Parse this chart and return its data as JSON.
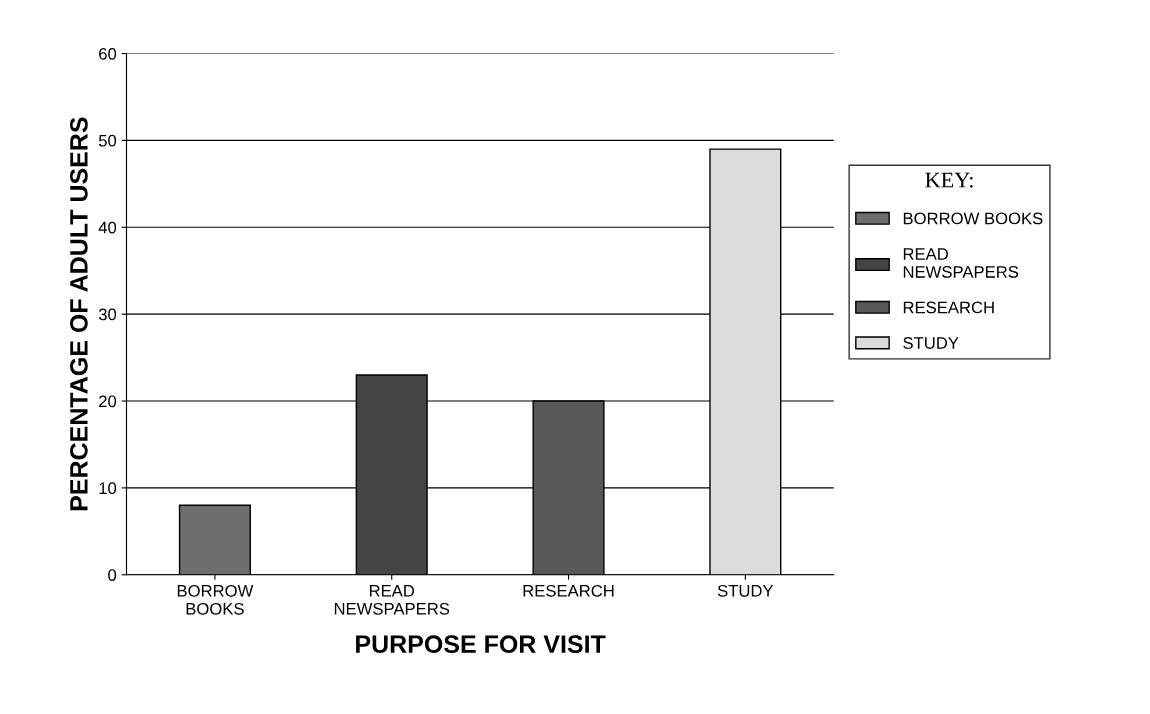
{
  "chart_data": {
    "type": "bar",
    "xlabel": "PURPOSE FOR VISIT",
    "ylabel": "PERCENTAGE OF ADULT USERS",
    "legend_title": "KEY:",
    "categories": [
      "BORROW\nBOOKS",
      "READ\nNEWSPAPERS",
      "RESEARCH",
      "STUDY"
    ],
    "series": [
      {
        "name": "BORROW BOOKS",
        "color": "#6e6e6e",
        "values": [
          8,
          null,
          null,
          null
        ]
      },
      {
        "name": "READ\nNEWSPAPERS",
        "color": "#444444",
        "values": [
          null,
          23,
          null,
          null
        ]
      },
      {
        "name": "RESEARCH",
        "color": "#585858",
        "values": [
          null,
          null,
          20,
          null
        ]
      },
      {
        "name": "STUDY",
        "color": "#dcdcdc",
        "values": [
          null,
          null,
          null,
          49
        ]
      }
    ],
    "ylim": [
      0,
      60
    ],
    "yticks": [
      0,
      10,
      20,
      30,
      40,
      50,
      60
    ],
    "grid": "y",
    "legend": "right"
  }
}
